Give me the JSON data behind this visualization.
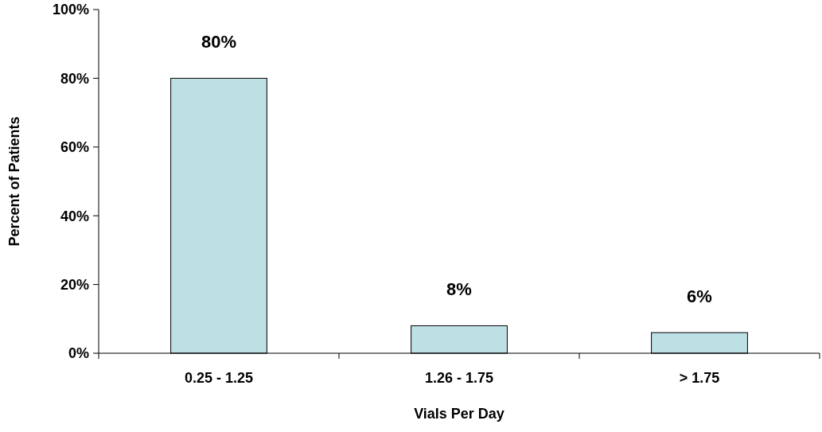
{
  "chart_data": {
    "type": "bar",
    "xlabel": "Vials Per Day",
    "ylabel": "Percent of Patients",
    "categories": [
      "0.25 - 1.25",
      "1.26 - 1.75",
      "> 1.75"
    ],
    "values": [
      80,
      8,
      6
    ],
    "value_labels": [
      "80%",
      "8%",
      "6%"
    ],
    "color": "#bde0e5",
    "ylim": [
      0,
      100
    ],
    "yticks": [
      {
        "value": 0,
        "label": "0%"
      },
      {
        "value": 20,
        "label": "20%"
      },
      {
        "value": 40,
        "label": "40%"
      },
      {
        "value": 60,
        "label": "60%"
      },
      {
        "value": 80,
        "label": "80%"
      },
      {
        "value": 100,
        "label": "100%"
      }
    ],
    "grid": false
  }
}
